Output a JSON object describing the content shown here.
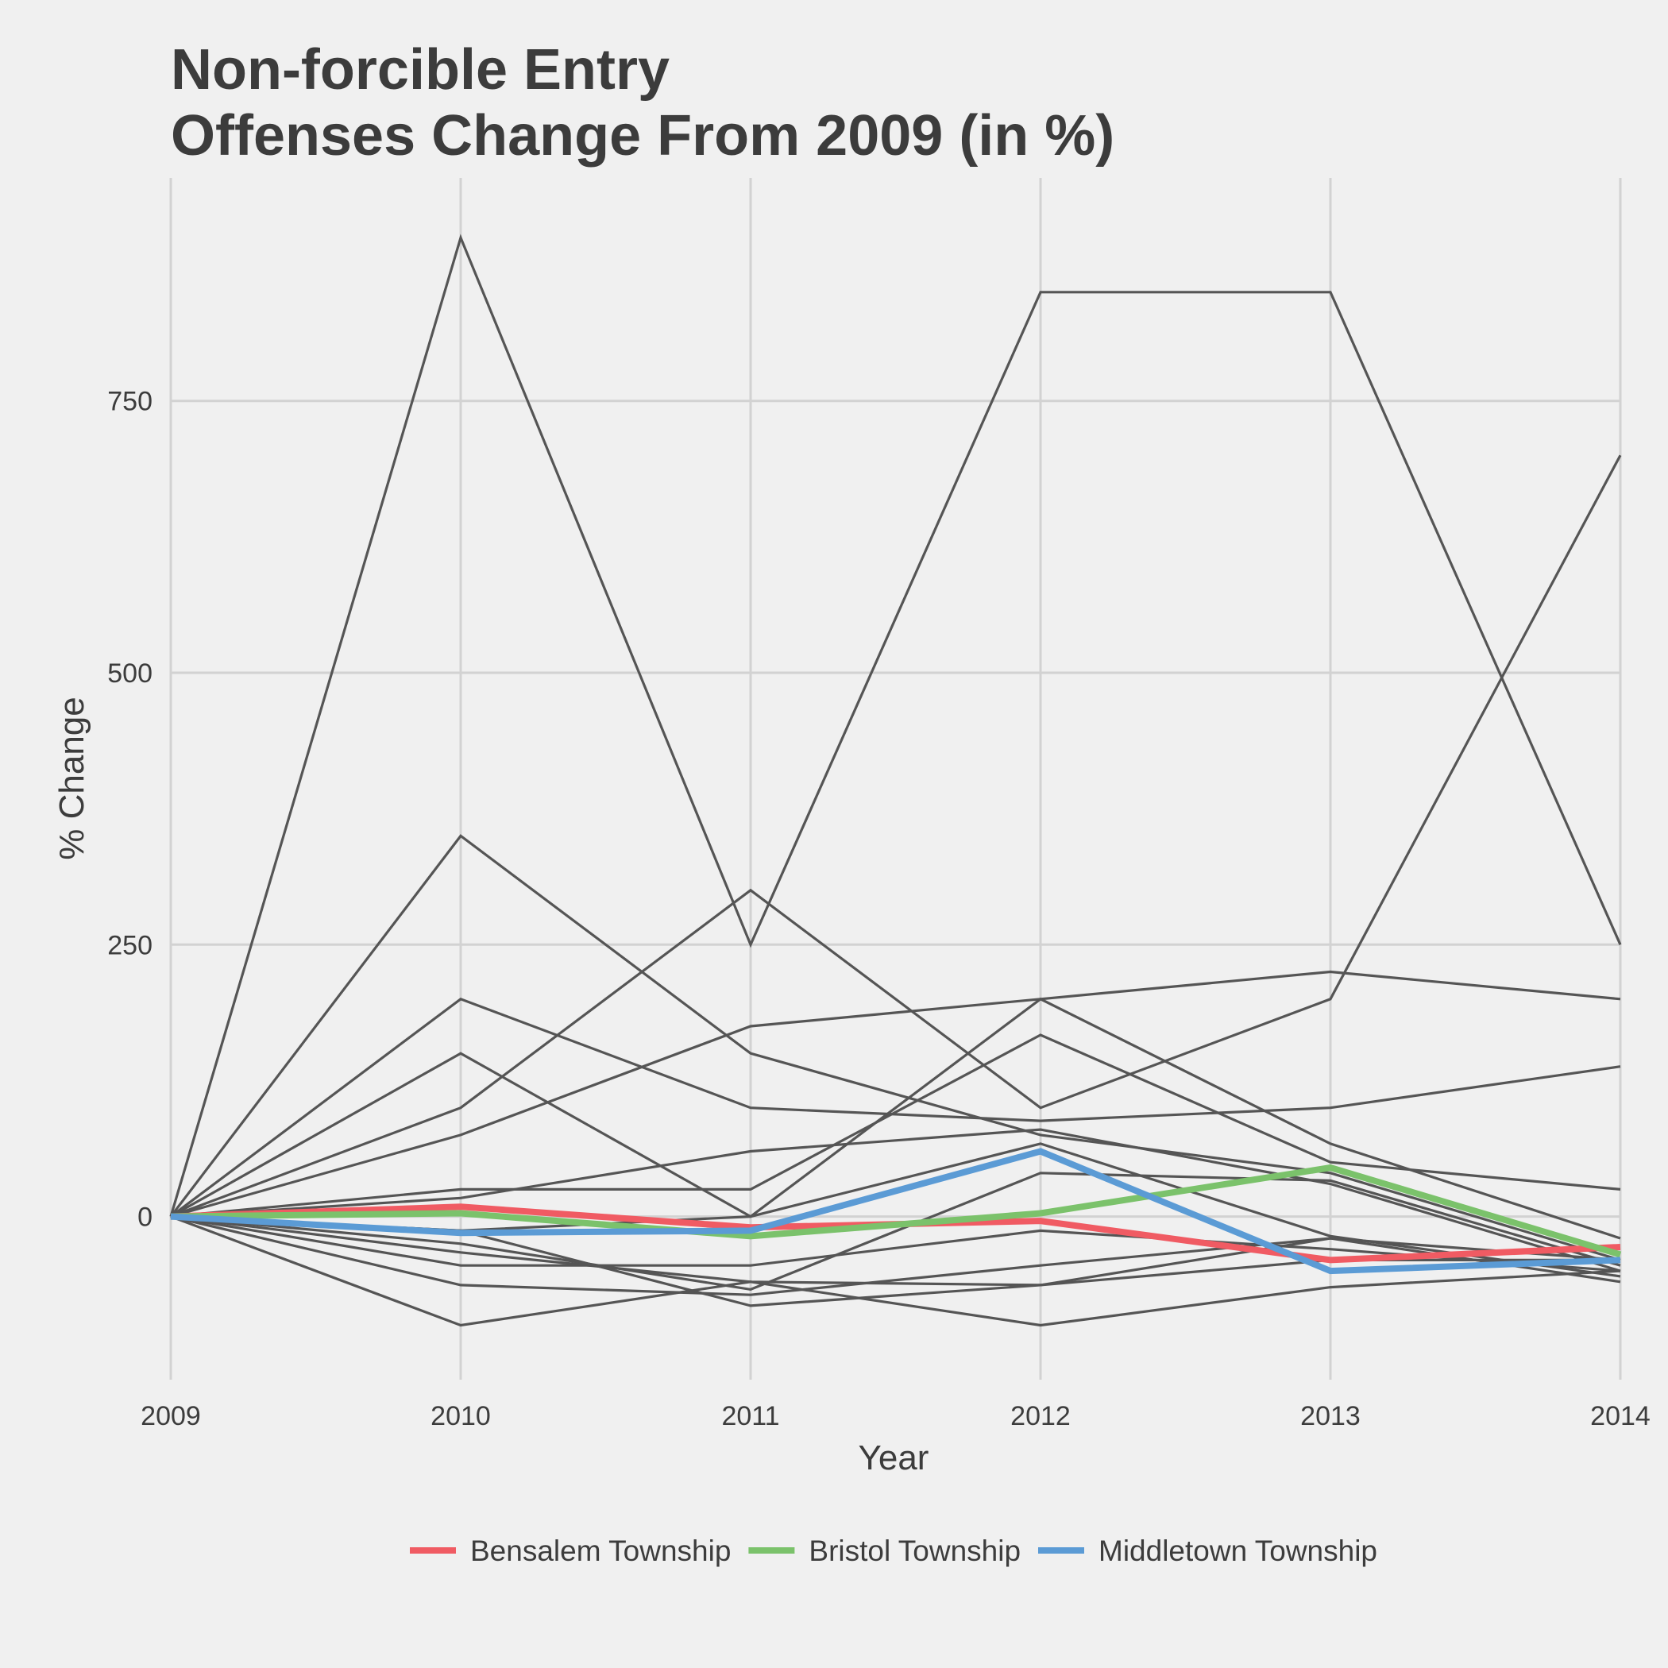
{
  "chart_data": {
    "type": "line",
    "title": [
      "Non-forcible Entry",
      "Offenses Change From 2009 (in %)"
    ],
    "xlabel": "Year",
    "ylabel": "% Change",
    "x": [
      2009,
      2010,
      2011,
      2012,
      2013,
      2014
    ],
    "x_tick_labels": [
      "2009",
      "2010",
      "2011",
      "2012",
      "2013",
      "2014"
    ],
    "y_ticks": [
      0,
      250,
      500,
      750
    ],
    "y_tick_labels": [
      "0",
      "250",
      "500",
      "750"
    ],
    "xlim": [
      2009,
      2014
    ],
    "ylim": [
      -150,
      955
    ],
    "grid": true,
    "legend_position": "bottom",
    "background_series_color": "#555555",
    "background_series": [
      {
        "values": [
          0,
          900,
          250,
          850,
          850,
          250
        ]
      },
      {
        "values": [
          0,
          100,
          300,
          100,
          200,
          700
        ]
      },
      {
        "values": [
          0,
          350,
          150,
          75,
          40,
          -40
        ]
      },
      {
        "values": [
          0,
          200,
          100,
          88,
          100,
          138
        ]
      },
      {
        "values": [
          0,
          150,
          0,
          200,
          67,
          -20
        ]
      },
      {
        "values": [
          0,
          75,
          175,
          200,
          225,
          200
        ]
      },
      {
        "values": [
          0,
          25,
          25,
          167,
          50,
          25
        ]
      },
      {
        "values": [
          0,
          17,
          60,
          80,
          30,
          -50
        ]
      },
      {
        "values": [
          0,
          -13,
          0,
          67,
          -18,
          -55
        ]
      },
      {
        "values": [
          0,
          -25,
          -67,
          40,
          33,
          -45
        ]
      },
      {
        "values": [
          0,
          -33,
          -60,
          -63,
          -20,
          -40
        ]
      },
      {
        "values": [
          0,
          -45,
          -45,
          -13,
          -30,
          -50
        ]
      },
      {
        "values": [
          0,
          -63,
          -72,
          -45,
          -20,
          -60
        ]
      },
      {
        "values": [
          0,
          -100,
          -60,
          -100,
          -65,
          -50
        ]
      },
      {
        "values": [
          0,
          -13,
          -82,
          -63,
          -40,
          -40
        ]
      }
    ],
    "series": [
      {
        "name": "Bensalem Township",
        "color": "#f05b63",
        "values": [
          0,
          9,
          -10,
          -4,
          -40,
          -28
        ]
      },
      {
        "name": "Bristol Township",
        "color": "#7bc26b",
        "values": [
          0,
          3,
          -18,
          3,
          45,
          -35
        ]
      },
      {
        "name": "Middletown Township",
        "color": "#5b9bd5",
        "values": [
          0,
          -15,
          -13,
          60,
          -50,
          -40
        ]
      }
    ]
  }
}
